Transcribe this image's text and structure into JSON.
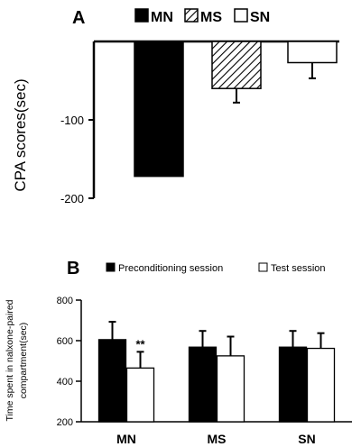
{
  "colors": {
    "black": "#000000",
    "white": "#ffffff"
  },
  "chart_data": [
    {
      "panel": "A",
      "type": "bar",
      "categories": [
        "MN",
        "MS",
        "SN"
      ],
      "series_patterns": [
        "solid-black",
        "diagonal-hatch",
        "white"
      ],
      "values": [
        -172,
        -60,
        -27
      ],
      "errors": [
        0,
        18,
        20
      ],
      "ylabel": "CPA scores(sec)",
      "yticks": [
        "-100",
        "-200"
      ],
      "ylim": [
        -200,
        0
      ],
      "legend": {
        "items": [
          "MN",
          "MS",
          "SN"
        ],
        "position": "top"
      }
    },
    {
      "panel": "B",
      "type": "bar",
      "categories": [
        "MN",
        "MS",
        "SN"
      ],
      "ylabel_line1": "Time spent in nalxone-paired",
      "ylabel_line2": "compartment(sec)",
      "yticks": [
        "800",
        "600",
        "400",
        "200"
      ],
      "ylim": [
        200,
        800
      ],
      "series": [
        {
          "name": "Preconditioning session",
          "color": "#000000",
          "values": [
            605,
            568,
            568
          ],
          "errors": [
            88,
            80,
            80
          ]
        },
        {
          "name": "Test session",
          "color": "#ffffff",
          "values": [
            465,
            525,
            562
          ],
          "errors": [
            80,
            95,
            75
          ]
        }
      ],
      "annotation": {
        "text": "**",
        "category": "MN",
        "series": "Test session"
      },
      "legend": {
        "position": "top"
      }
    }
  ]
}
